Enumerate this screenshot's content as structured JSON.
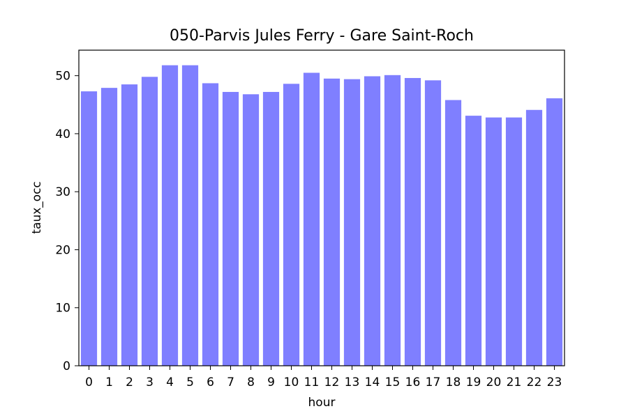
{
  "chart_data": {
    "type": "bar",
    "title": "050-Parvis Jules Ferry - Gare Saint-Roch",
    "xlabel": "hour",
    "ylabel": "taux_occ",
    "categories": [
      "0",
      "1",
      "2",
      "3",
      "4",
      "5",
      "6",
      "7",
      "8",
      "9",
      "10",
      "11",
      "12",
      "13",
      "14",
      "15",
      "16",
      "17",
      "18",
      "19",
      "20",
      "21",
      "22",
      "23"
    ],
    "values": [
      47.3,
      47.9,
      48.5,
      49.8,
      51.8,
      51.8,
      48.7,
      47.2,
      46.8,
      47.2,
      48.6,
      50.5,
      49.5,
      49.4,
      49.9,
      50.1,
      49.6,
      49.2,
      45.8,
      43.1,
      42.8,
      42.8,
      44.1,
      46.1
    ],
    "ylim": [
      0,
      54.4
    ],
    "yticks": [
      0,
      10,
      20,
      30,
      40,
      50
    ],
    "bar_color": "#7f7fff",
    "grid": false,
    "legend": "none"
  }
}
